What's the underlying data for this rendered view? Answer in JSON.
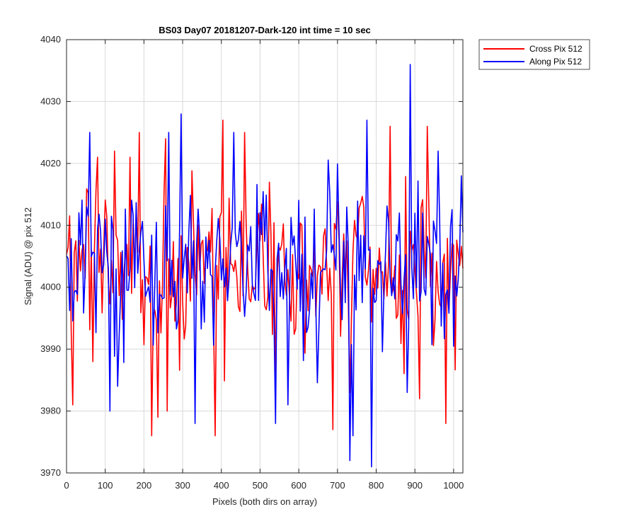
{
  "chart_data": {
    "type": "line",
    "title": "BS03 Day07 20181207-Dark-120 int time = 10 sec",
    "xlabel": "Pixels (both dirs on array)",
    "ylabel": "Signal (ADU) @ pix 512",
    "xlim": [
      0,
      1024
    ],
    "ylim": [
      3970,
      4040
    ],
    "xticks": [
      0,
      100,
      200,
      300,
      400,
      500,
      600,
      700,
      800,
      900,
      1000
    ],
    "yticks": [
      3970,
      3980,
      3990,
      4000,
      4010,
      4020,
      4030,
      4040
    ],
    "grid": true,
    "legend_position": "outside-top-right",
    "series": [
      {
        "name": "Cross Pix 512",
        "color": "#ff0000",
        "baseline": 4002,
        "sample_step": 4,
        "key_points": [
          {
            "x": 17,
            "y": 3981
          },
          {
            "x": 80,
            "y": 4021
          },
          {
            "x": 123,
            "y": 4022
          },
          {
            "x": 186,
            "y": 4013
          },
          {
            "x": 187,
            "y": 4025
          },
          {
            "x": 220,
            "y": 3976
          },
          {
            "x": 234,
            "y": 3979
          },
          {
            "x": 258,
            "y": 3980
          },
          {
            "x": 256,
            "y": 4024
          },
          {
            "x": 383,
            "y": 3976
          },
          {
            "x": 403,
            "y": 4027
          },
          {
            "x": 460,
            "y": 4025
          },
          {
            "x": 687,
            "y": 3977
          },
          {
            "x": 730,
            "y": 3983
          },
          {
            "x": 835,
            "y": 4026
          },
          {
            "x": 912,
            "y": 3982
          },
          {
            "x": 930,
            "y": 4026
          },
          {
            "x": 980,
            "y": 3978
          }
        ]
      },
      {
        "name": "Along Pix 512",
        "color": "#0000ff",
        "baseline": 4003,
        "sample_step": 4,
        "key_points": [
          {
            "x": 60,
            "y": 4025
          },
          {
            "x": 110,
            "y": 3980
          },
          {
            "x": 133,
            "y": 3984
          },
          {
            "x": 263,
            "y": 4025
          },
          {
            "x": 297,
            "y": 4028
          },
          {
            "x": 330,
            "y": 3978
          },
          {
            "x": 433,
            "y": 4025
          },
          {
            "x": 540,
            "y": 3978
          },
          {
            "x": 570,
            "y": 3981
          },
          {
            "x": 730,
            "y": 3972
          },
          {
            "x": 740,
            "y": 3976
          },
          {
            "x": 775,
            "y": 4027
          },
          {
            "x": 788,
            "y": 3971
          },
          {
            "x": 886,
            "y": 4036
          },
          {
            "x": 880,
            "y": 3983
          },
          {
            "x": 959,
            "y": 4022
          },
          {
            "x": 1020,
            "y": 4018
          }
        ]
      }
    ]
  }
}
